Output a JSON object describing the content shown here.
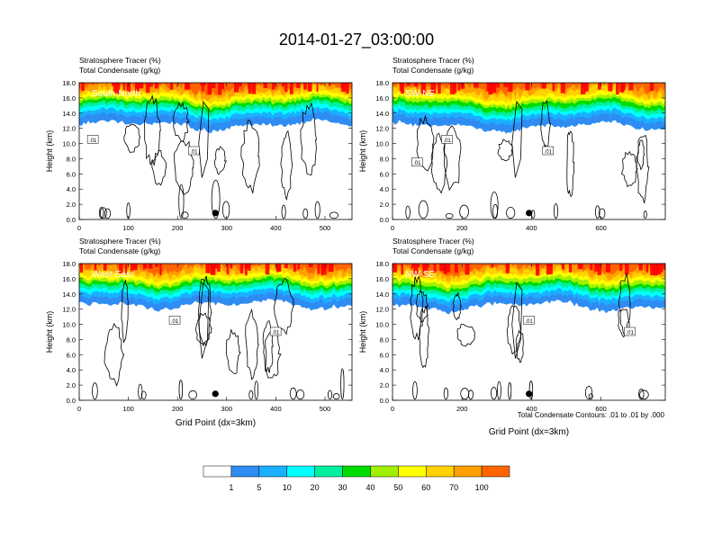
{
  "title": "2014-01-27_03:00:00",
  "footnote": "Total Condensate Contours: .01 to .01 by .000",
  "colors": {
    "palette": [
      "#ffffff",
      "#2e8cf2",
      "#1ab0ff",
      "#00ffff",
      "#00f0a0",
      "#00dc00",
      "#a0f000",
      "#ffff00",
      "#ffd200",
      "#ffa000",
      "#ff6400",
      "#ff0000"
    ]
  },
  "colorbar": {
    "labels": [
      "1",
      "5",
      "10",
      "20",
      "30",
      "40",
      "50",
      "60",
      "70",
      "100"
    ]
  },
  "chart_data": [
    {
      "type": "heatmap",
      "cross_section": "South-North",
      "titles": [
        "Stratosphere Tracer   (%)",
        "Total Condensate   (g/kg)"
      ],
      "ylabel": "Height (km)",
      "xlabel": "",
      "xlim": [
        0,
        555
      ],
      "ylim": [
        0,
        18
      ],
      "xticks": [
        0,
        100,
        200,
        300,
        400,
        500
      ],
      "yticks": [
        "0.0",
        "2.0",
        "4.0",
        "6.0",
        "8.0",
        "10.0",
        "12.0",
        "14.0",
        "16.0",
        "18.0"
      ],
      "contour_labels": [
        ".01",
        ".01"
      ],
      "marker_x": 277,
      "tracer_bands_km": {
        "base_mean": 13.3,
        "layers": [
          12.4,
          13.4,
          14.0,
          14.5,
          15.0,
          15.4,
          15.8,
          16.3,
          16.8,
          17.4
        ]
      }
    },
    {
      "type": "heatmap",
      "cross_section": "SW-NE",
      "titles": [
        "Stratosphere Tracer   (%)",
        "Total Condensate   (g/kg)"
      ],
      "ylabel": "Height (km)",
      "xlabel": "",
      "xlim": [
        0,
        785
      ],
      "ylim": [
        0,
        18
      ],
      "xticks": [
        0,
        200,
        400,
        600
      ],
      "yticks": [
        "0.0",
        "2.0",
        "4.0",
        "6.0",
        "8.0",
        "10.0",
        "12.0",
        "14.0",
        "16.0",
        "18.0"
      ],
      "contour_labels": [
        ".01",
        ".01",
        ".01"
      ],
      "marker_x": 393,
      "tracer_bands_km": {
        "base_mean": 13.0,
        "layers": [
          12.2,
          13.2,
          13.8,
          14.3,
          14.8,
          15.3,
          15.7,
          16.2,
          16.8,
          17.4
        ]
      }
    },
    {
      "type": "heatmap",
      "cross_section": "West-East",
      "titles": [
        "Stratosphere Tracer   (%)",
        "Total Condensate   (g/kg)"
      ],
      "ylabel": "Height (km)",
      "xlabel": "Grid Point (dx=3km)",
      "xlim": [
        0,
        555
      ],
      "ylim": [
        0,
        18
      ],
      "xticks": [
        0,
        100,
        200,
        300,
        400,
        500
      ],
      "yticks": [
        "0.0",
        "2.0",
        "4.0",
        "6.0",
        "8.0",
        "10.0",
        "12.0",
        "14.0",
        "16.0",
        "18.0"
      ],
      "contour_labels": [
        ".01",
        ".01"
      ],
      "marker_x": 277,
      "tracer_bands_km": {
        "base_mean": 13.4,
        "layers": [
          12.6,
          13.5,
          14.1,
          14.6,
          15.1,
          15.5,
          15.9,
          16.4,
          16.9,
          17.5
        ]
      }
    },
    {
      "type": "heatmap",
      "cross_section": "NW-SE",
      "titles": [
        "Stratosphere Tracer   (%)",
        "Total Condensate   (g/kg)"
      ],
      "ylabel": "Height (km)",
      "xlabel": "Grid Point (dx=3km)",
      "xlim": [
        0,
        785
      ],
      "ylim": [
        0,
        18
      ],
      "xticks": [
        0,
        200,
        400,
        600
      ],
      "yticks": [
        "0.0",
        "2.0",
        "4.0",
        "6.0",
        "8.0",
        "10.0",
        "12.0",
        "14.0",
        "16.0",
        "18.0"
      ],
      "contour_labels": [
        ".01",
        ".01"
      ],
      "marker_x": 393,
      "tracer_bands_km": {
        "base_mean": 13.2,
        "layers": [
          12.4,
          13.3,
          13.9,
          14.4,
          14.9,
          15.3,
          15.8,
          16.3,
          16.8,
          17.4
        ]
      }
    }
  ]
}
